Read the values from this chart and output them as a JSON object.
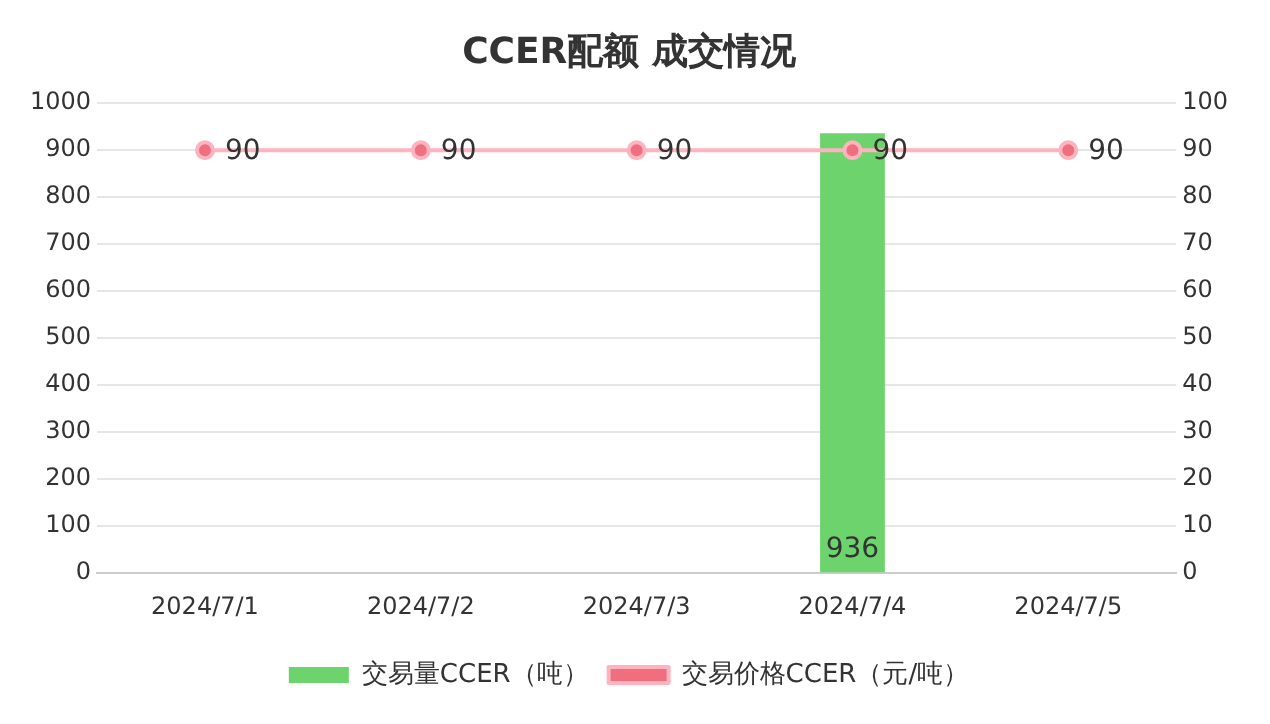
{
  "chart_data": {
    "type": "bar",
    "title": "CCER配额 成交情况",
    "categories": [
      "2024/7/1",
      "2024/7/2",
      "2024/7/3",
      "2024/7/4",
      "2024/7/5"
    ],
    "series": [
      {
        "name": "交易量CCER（吨）",
        "color": "#6dd36d",
        "values": [
          null,
          null,
          null,
          936,
          null
        ]
      },
      {
        "name": "交易价格CCER（元/吨）",
        "type": "line",
        "axis": "y2",
        "color": "#ffb3bf",
        "marker": "circle",
        "values": [
          90,
          90,
          90,
          90,
          90
        ]
      }
    ],
    "ylim": [
      0,
      1000
    ],
    "yticks": [
      0,
      100,
      200,
      300,
      400,
      500,
      600,
      700,
      800,
      900,
      1000
    ],
    "y2lim": [
      0,
      100
    ],
    "y2ticks": [
      0,
      10,
      20,
      30,
      40,
      50,
      60,
      70,
      80,
      90,
      100
    ],
    "grid": "y",
    "legend": "bottom",
    "data_labels": true
  }
}
